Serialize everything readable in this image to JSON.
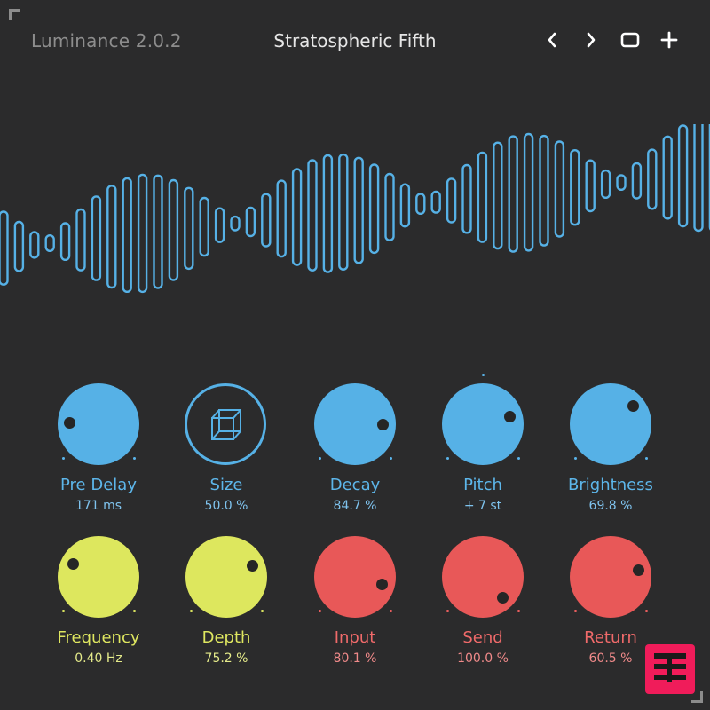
{
  "header": {
    "app_title": "Luminance 2.0.2",
    "preset_name": "Stratospheric Fifth",
    "buttons": [
      "previous-preset",
      "next-preset",
      "window-toggle",
      "add-preset"
    ]
  },
  "colors": {
    "background": "#2b2b2c",
    "blue": "#56b1e6",
    "yellow": "#dde75e",
    "red": "#e85858",
    "logo": "#f01c5a"
  },
  "knobs_row1": {
    "pre_delay": {
      "label": "Pre Delay",
      "value": "171 ms"
    },
    "size": {
      "label": "Size",
      "value": "50.0 %"
    },
    "decay": {
      "label": "Decay",
      "value": "84.7 %"
    },
    "pitch": {
      "label": "Pitch",
      "value": "+ 7 st"
    },
    "brightness": {
      "label": "Brightness",
      "value": "69.8 %"
    }
  },
  "knobs_row2": {
    "frequency": {
      "label": "Frequency",
      "value": "0.40 Hz"
    },
    "depth": {
      "label": "Depth",
      "value": "75.2 %"
    },
    "input": {
      "label": "Input",
      "value": "80.1 %"
    },
    "send": {
      "label": "Send",
      "value": "100.0 %"
    },
    "return": {
      "label": "Return",
      "value": "60.5 %"
    }
  },
  "icons": {
    "size_button": "cube-icon",
    "logo": "brand-logo-icon"
  }
}
